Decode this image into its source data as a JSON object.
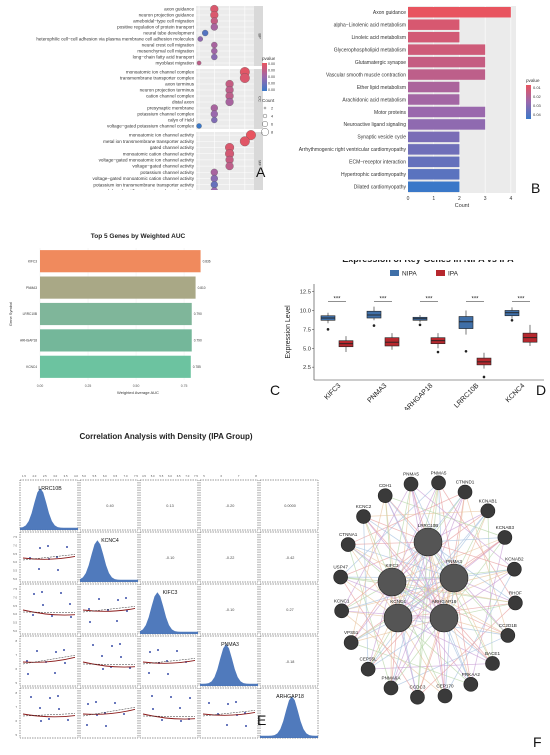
{
  "panel_letters": {
    "A": "A",
    "B": "B",
    "C": "C",
    "D": "D",
    "E": "E",
    "F": "F"
  },
  "chart_data": [
    {
      "id": "A",
      "type": "scatter",
      "xlabel": "GeneRatio",
      "xticks": [
        "0.050",
        "0.075",
        "0.100",
        "0.125"
      ],
      "facets": [
        "BP",
        "CC",
        "MF"
      ],
      "legend_color_title": "pvalue",
      "legend_color_ticks": [
        "0.0005",
        "0.0010",
        "0.0015",
        "0.0020",
        "0.0025"
      ],
      "legend_size_title": "Count",
      "legend_size_ticks": [
        "2",
        "4",
        "6",
        "8"
      ],
      "groups": [
        {
          "facet": "BP",
          "terms": [
            {
              "term": "axon guidance",
              "x": 0.075,
              "count": 6,
              "p": 0.0005
            },
            {
              "term": "neuron projection guidance",
              "x": 0.075,
              "count": 6,
              "p": 0.0005
            },
            {
              "term": "ameboidal−type cell migration",
              "x": 0.075,
              "count": 5,
              "p": 0.0008
            },
            {
              "term": "positive regulation of protein transport",
              "x": 0.075,
              "count": 5,
              "p": 0.0012
            },
            {
              "term": "neural tube development",
              "x": 0.06,
              "count": 4,
              "p": 0.0022
            },
            {
              "term": "heterophilic cell−cell adhesion via plasma membrane cell adhesion molecules",
              "x": 0.052,
              "count": 3,
              "p": 0.0015
            },
            {
              "term": "neural crest cell migration",
              "x": 0.075,
              "count": 4,
              "p": 0.0012
            },
            {
              "term": "mesenchymal cell migration",
              "x": 0.075,
              "count": 4,
              "p": 0.0013
            },
            {
              "term": "long−chain fatty acid transport",
              "x": 0.075,
              "count": 4,
              "p": 0.0016
            },
            {
              "term": "myoblast migration",
              "x": 0.05,
              "count": 2,
              "p": 0.0009
            }
          ]
        },
        {
          "facet": "CC",
          "terms": [
            {
              "term": "monoatomic ion channel complex",
              "x": 0.125,
              "count": 8,
              "p": 0.0004
            },
            {
              "term": "transmembrane transporter complex",
              "x": 0.125,
              "count": 8,
              "p": 0.0005
            },
            {
              "term": "axon terminus",
              "x": 0.1,
              "count": 6,
              "p": 0.0008
            },
            {
              "term": "neuron projection terminus",
              "x": 0.1,
              "count": 6,
              "p": 0.0009
            },
            {
              "term": "cation channel complex",
              "x": 0.1,
              "count": 6,
              "p": 0.0009
            },
            {
              "term": "distal axon",
              "x": 0.1,
              "count": 6,
              "p": 0.0012
            },
            {
              "term": "presynaptic membrane",
              "x": 0.075,
              "count": 5,
              "p": 0.0012
            },
            {
              "term": "potassium channel complex",
              "x": 0.075,
              "count": 5,
              "p": 0.0014
            },
            {
              "term": "calyx of Held",
              "x": 0.075,
              "count": 4,
              "p": 0.0017
            },
            {
              "term": "voltage−gated potassium channel complex",
              "x": 0.05,
              "count": 3,
              "p": 0.0025
            }
          ]
        },
        {
          "facet": "MF",
          "terms": [
            {
              "term": "monoatomic ion channel activity",
              "x": 0.135,
              "count": 8,
              "p": 0.0003
            },
            {
              "term": "metal ion transmembrane transporter activity",
              "x": 0.125,
              "count": 8,
              "p": 0.0004
            },
            {
              "term": "gated channel activity",
              "x": 0.1,
              "count": 7,
              "p": 0.0005
            },
            {
              "term": "monoatomic cation channel activity",
              "x": 0.1,
              "count": 7,
              "p": 0.0006
            },
            {
              "term": "voltage−gated monoatomic ion channel activity",
              "x": 0.1,
              "count": 6,
              "p": 0.0008
            },
            {
              "term": "voltage−gated channel activity",
              "x": 0.1,
              "count": 6,
              "p": 0.0009
            },
            {
              "term": "potassium channel activity",
              "x": 0.075,
              "count": 5,
              "p": 0.0012
            },
            {
              "term": "voltage−gated monoatomic cation channel activity",
              "x": 0.075,
              "count": 5,
              "p": 0.0016
            },
            {
              "term": "potassium ion transmembrane transporter activity",
              "x": 0.075,
              "count": 5,
              "p": 0.002
            },
            {
              "term": "delayed rectifier potassium channel activity",
              "x": 0.075,
              "count": 5,
              "p": 0.0014
            }
          ]
        }
      ]
    },
    {
      "id": "B",
      "type": "bar",
      "orientation": "horizontal",
      "xlabel": "Count",
      "xlim": [
        0,
        4
      ],
      "xticks": [
        "0",
        "1",
        "2",
        "3",
        "4"
      ],
      "legend_title": "pvalue",
      "legend_ticks": [
        "0.01",
        "0.02",
        "0.03",
        "0.04"
      ],
      "categories": [
        "Axon guidance",
        "alpha−Linolenic acid metabolism",
        "Linoleic acid metabolism",
        "Glycerophospholipid metabolism",
        "Glutamatergic synapse",
        "Vascular smooth muscle contraction",
        "Ether lipid metabolism",
        "Arachidonic acid metabolism",
        "Motor proteins",
        "Neuroactive ligand signaling",
        "Synaptic vesicle cycle",
        "Arrhythmogenic right ventricular cardiomyopathy",
        "ECM−receptor interaction",
        "Hypertrophic cardiomyopathy",
        "Dilated cardiomyopathy"
      ],
      "values": [
        4,
        2,
        2,
        3,
        3,
        3,
        2,
        2,
        3,
        3,
        2,
        2,
        2,
        2,
        2
      ],
      "pvalues": [
        0.006,
        0.01,
        0.011,
        0.012,
        0.014,
        0.016,
        0.02,
        0.022,
        0.024,
        0.026,
        0.03,
        0.032,
        0.034,
        0.036,
        0.042
      ]
    },
    {
      "id": "C",
      "type": "bar",
      "orientation": "horizontal",
      "title": "Top 5 Genes by Weighted AUC",
      "xlabel": "Weighted Average AUC",
      "ylabel": "Gene Symbol",
      "categories": [
        "KIFC3",
        "PNMA3",
        "LRRC10B",
        "ARHGAP18",
        "KCNC4"
      ],
      "values": [
        0.836,
        0.81,
        0.79,
        0.79,
        0.785
      ],
      "value_labels": [
        "0.836",
        "0.810",
        "0.790",
        "0.790",
        "0.785"
      ],
      "colors": [
        "#f08a5d",
        "#a9a886",
        "#7fb69a",
        "#74b79a",
        "#6cc3a0"
      ],
      "xticks": [
        "0.00",
        "0.25",
        "0.50",
        "0.75"
      ]
    },
    {
      "id": "D",
      "type": "box",
      "title": "Expression of Key Genes in NIPA vs IPA",
      "ylabel": "Expression Level",
      "yticks": [
        "2.5",
        "5.0",
        "7.5",
        "10.0",
        "12.5"
      ],
      "ylim": [
        0.8,
        13.5
      ],
      "categories": [
        "KIFC3",
        "PNMA3",
        "ARHGAP18",
        "LRRC10B",
        "KCNC4"
      ],
      "significance": [
        "***",
        "***",
        "***",
        "***",
        "***"
      ],
      "series": [
        {
          "name": "NIPA",
          "color": "#3f6fa8",
          "stats": [
            [
              8.3,
              8.7,
              9.0,
              9.3,
              9.7
            ],
            [
              8.7,
              9.0,
              9.4,
              9.9,
              10.5
            ],
            [
              8.4,
              8.7,
              8.9,
              9.1,
              9.4
            ],
            [
              6.8,
              7.6,
              8.5,
              9.2,
              10.0
            ],
            [
              8.9,
              9.3,
              9.7,
              10.0,
              10.4
            ]
          ],
          "outliers": [
            [
              7.5
            ],
            [
              8.0
            ],
            [
              8.1
            ],
            [
              4.6
            ],
            [
              8.7
            ]
          ]
        },
        {
          "name": "IPA",
          "color": "#b7282e",
          "stats": [
            [
              4.5,
              5.2,
              5.6,
              6.0,
              6.6
            ],
            [
              4.8,
              5.3,
              5.8,
              6.4,
              7.0
            ],
            [
              5.0,
              5.6,
              6.0,
              6.4,
              7.0
            ],
            [
              2.3,
              2.8,
              3.2,
              3.7,
              4.4
            ],
            [
              5.3,
              5.8,
              6.4,
              7.0,
              8.1
            ]
          ],
          "outliers": [
            [],
            [],
            [
              4.5
            ],
            [
              1.2
            ],
            []
          ]
        }
      ]
    },
    {
      "id": "E",
      "type": "scatter",
      "title": "Correlation Analysis with Density (IPA Group)",
      "variables": [
        "LRRC10B",
        "KCNC4",
        "KIFC3",
        "PNMA3",
        "ARHGAP18"
      ],
      "correlations": [
        {
          "i": 0,
          "j": 1,
          "label": "0.40"
        },
        {
          "i": 0,
          "j": 2,
          "label": "0.13"
        },
        {
          "i": 0,
          "j": 3,
          "label": "-0.20"
        },
        {
          "i": 0,
          "j": 4,
          "label": "0.0000"
        },
        {
          "i": 1,
          "j": 2,
          "label": "-0.10"
        },
        {
          "i": 1,
          "j": 3,
          "label": "-0.22"
        },
        {
          "i": 1,
          "j": 4,
          "label": "-0.42"
        },
        {
          "i": 2,
          "j": 3,
          "label": "-0.10"
        },
        {
          "i": 2,
          "j": 4,
          "label": "0.27"
        },
        {
          "i": 3,
          "j": 4,
          "label": "-0.18"
        }
      ],
      "top_ticks": [
        [
          "1.5",
          "2.0",
          "2.5",
          "3.0",
          "3.5",
          "4.0"
        ],
        [
          "5.0",
          "5.5",
          "6.0",
          "6.5",
          "7.0",
          "7.5"
        ],
        [
          "4.5",
          "5.0",
          "5.5",
          "6.0",
          "6.5",
          "7.0",
          "7.5"
        ],
        [
          "5",
          "6",
          "7",
          "8"
        ],
        [
          "",
          "",
          "",
          ""
        ]
      ],
      "bottom_ticks": [
        [
          "1.5",
          "2.0",
          "2.5",
          "3.0",
          "3.5",
          "4.0"
        ],
        [
          "5.0",
          "5.5",
          "6.0",
          "6.5",
          "7.0",
          "7.5"
        ],
        [
          "4.5",
          "5.0",
          "5.5",
          "6.0",
          "6.5",
          "7.0",
          "7.5"
        ],
        [
          "5",
          "6",
          "7",
          "8"
        ],
        [
          "5",
          "6",
          "7",
          "8"
        ]
      ],
      "row_ticks": [
        [
          "",
          ""
        ],
        [
          "7.5",
          "7.0",
          "6.5",
          "6.0",
          "5.5",
          "5.0"
        ],
        [
          "7.5",
          "7.0",
          "6.5",
          "6.0",
          "5.5",
          "5.0"
        ],
        [
          "8",
          "7",
          "6",
          "5"
        ],
        [
          "8",
          "7",
          "6",
          "5"
        ]
      ]
    }
  ],
  "network": {
    "nodes": [
      {
        "id": "PNMA5",
        "label": "PNMA5"
      },
      {
        "id": "CTNND1",
        "label": "CTNND1"
      },
      {
        "id": "KCNAB1",
        "label": "KCNAB1"
      },
      {
        "id": "KCNAB3",
        "label": "KCNAB3"
      },
      {
        "id": "KCNAB2",
        "label": "KCNAB2"
      },
      {
        "id": "RHOF",
        "label": "RHOF"
      },
      {
        "id": "CC2D1B",
        "label": "CC2D1B"
      },
      {
        "id": "BACE1",
        "label": "BACE1"
      },
      {
        "id": "PRKAA2",
        "label": "PRKAA2"
      },
      {
        "id": "CEP170",
        "label": "CEP170"
      },
      {
        "id": "CCDC3",
        "label": "CCDC3"
      },
      {
        "id": "PNMA6A",
        "label": "PNMA6A"
      },
      {
        "id": "CEP55L",
        "label": "CEP55L"
      },
      {
        "id": "VPS51",
        "label": "VPS51"
      },
      {
        "id": "KCNC1",
        "label": "KCNC1"
      },
      {
        "id": "USP47",
        "label": "USP47"
      },
      {
        "id": "CTNNA1",
        "label": "CTNNA1"
      },
      {
        "id": "KCNC2",
        "label": "KCNC2"
      },
      {
        "id": "CDH1",
        "label": "CDH1"
      },
      {
        "id": "PNMA5b",
        "label": "PNMA5"
      },
      {
        "id": "LRRC10B",
        "label": "LRRC10B"
      },
      {
        "id": "KIFC3",
        "label": "KIFC3"
      },
      {
        "id": "PNMA3",
        "label": "PNMA3"
      },
      {
        "id": "KCNC4",
        "label": "KCNC4"
      },
      {
        "id": "ARHGAP18",
        "label": "ARHGAP18"
      }
    ]
  }
}
